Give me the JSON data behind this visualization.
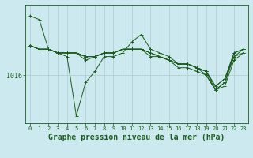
{
  "background_color": "#cce9f0",
  "line_color": "#1a5c1a",
  "grid_color": "#b0c8cc",
  "xlabel": "Graphe pression niveau de la mer (hPa)",
  "ytick_val": 1016,
  "xlim": [
    -0.5,
    23.5
  ],
  "ylim": [
    1009.5,
    1025.5
  ],
  "lines": [
    [
      1024.0,
      1023.5,
      1019.5,
      1019.0,
      1018.5,
      1010.5,
      1015.0,
      1016.5,
      1018.5,
      1018.5,
      1019.0,
      1020.5,
      1021.5,
      1019.5,
      1019.0,
      1018.5,
      1017.5,
      1017.5,
      1017.0,
      1016.5,
      1014.0,
      1015.0,
      1019.0,
      1019.5
    ],
    [
      1020.0,
      1019.5,
      1019.5,
      1019.0,
      1019.0,
      1019.0,
      1018.5,
      1018.5,
      1019.0,
      1019.0,
      1019.5,
      1019.5,
      1019.5,
      1019.0,
      1018.5,
      1018.0,
      1017.5,
      1017.5,
      1017.0,
      1016.5,
      1014.5,
      1015.5,
      1019.0,
      1019.5
    ],
    [
      1020.0,
      1019.5,
      1019.5,
      1019.0,
      1019.0,
      1019.0,
      1018.5,
      1018.5,
      1019.0,
      1019.0,
      1019.5,
      1019.5,
      1019.5,
      1019.0,
      1018.5,
      1018.0,
      1017.5,
      1017.5,
      1017.0,
      1016.5,
      1014.5,
      1015.5,
      1018.5,
      1019.5
    ],
    [
      1020.0,
      1019.5,
      1019.5,
      1019.0,
      1019.0,
      1019.0,
      1018.5,
      1018.5,
      1019.0,
      1019.0,
      1019.5,
      1019.5,
      1019.5,
      1019.0,
      1018.5,
      1018.0,
      1017.5,
      1017.5,
      1017.0,
      1016.0,
      1014.0,
      1015.0,
      1018.5,
      1019.0
    ],
    [
      1020.0,
      1019.5,
      1019.5,
      1019.0,
      1019.0,
      1019.0,
      1018.0,
      1018.5,
      1019.0,
      1019.0,
      1019.5,
      1019.5,
      1019.5,
      1018.5,
      1018.5,
      1018.0,
      1017.0,
      1017.0,
      1016.5,
      1016.0,
      1014.0,
      1014.5,
      1018.0,
      1019.0
    ]
  ],
  "title_fontsize": 7,
  "tick_fontsize": 5
}
